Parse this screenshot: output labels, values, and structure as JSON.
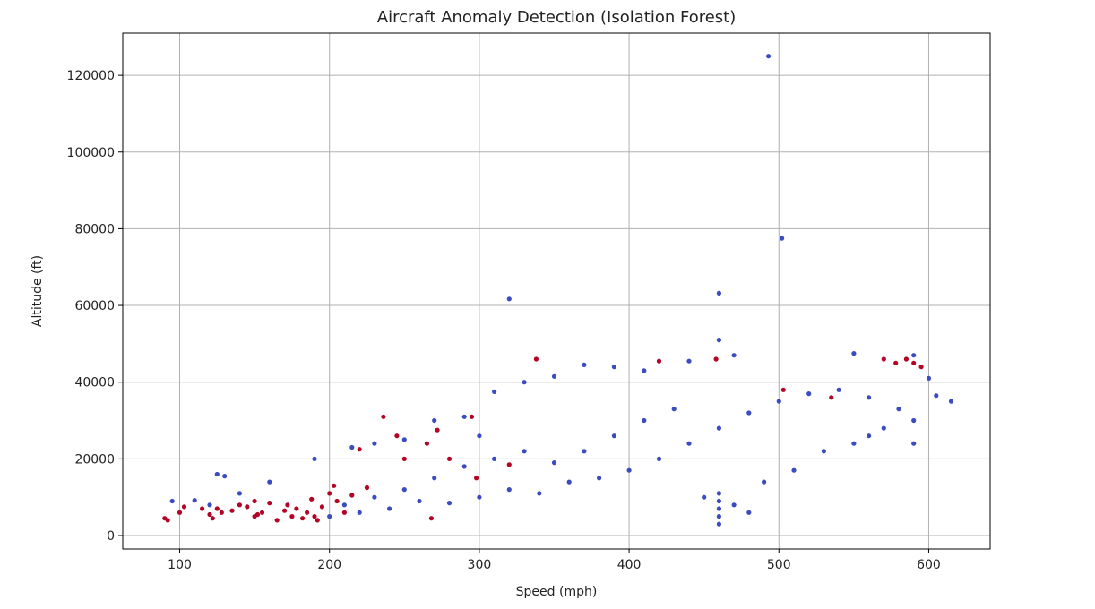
{
  "chart_data": {
    "type": "scatter",
    "title": "Aircraft Anomaly Detection (Isolation Forest)",
    "xlabel": "Speed (mph)",
    "ylabel": "Altitude (ft)",
    "xlim": [
      62,
      641
    ],
    "ylim": [
      -3500,
      131000
    ],
    "x_ticks": [
      100,
      200,
      300,
      400,
      500,
      600
    ],
    "y_ticks": [
      0,
      20000,
      40000,
      60000,
      80000,
      100000,
      120000
    ],
    "grid": true,
    "colors": {
      "normal": "#3b4cc0",
      "anomaly": "#b40426"
    },
    "series": [
      {
        "label_class": "normal",
        "points": [
          [
            493,
            125000
          ],
          [
            502,
            77500
          ],
          [
            320,
            61700
          ],
          [
            460,
            63200
          ],
          [
            460,
            51000
          ],
          [
            470,
            47000
          ],
          [
            550,
            47500
          ],
          [
            590,
            47000
          ],
          [
            615,
            35000
          ],
          [
            600,
            41000
          ],
          [
            605,
            36500
          ],
          [
            590,
            24000
          ],
          [
            560,
            26000
          ],
          [
            370,
            44500
          ],
          [
            390,
            44000
          ],
          [
            410,
            43000
          ],
          [
            440,
            45500
          ],
          [
            310,
            37500
          ],
          [
            330,
            40000
          ],
          [
            350,
            41500
          ],
          [
            190,
            20000
          ],
          [
            160,
            14000
          ],
          [
            140,
            11000
          ],
          [
            125,
            16000
          ],
          [
            130,
            15500
          ],
          [
            95,
            9000
          ],
          [
            110,
            9200
          ],
          [
            120,
            8000
          ],
          [
            215,
            23000
          ],
          [
            230,
            24000
          ],
          [
            250,
            25000
          ],
          [
            270,
            30000
          ],
          [
            290,
            31000
          ],
          [
            300,
            26000
          ],
          [
            260,
            9000
          ],
          [
            280,
            8500
          ],
          [
            300,
            10000
          ],
          [
            320,
            12000
          ],
          [
            340,
            11000
          ],
          [
            360,
            14000
          ],
          [
            380,
            15000
          ],
          [
            400,
            17000
          ],
          [
            420,
            20000
          ],
          [
            440,
            24000
          ],
          [
            460,
            28000
          ],
          [
            480,
            32000
          ],
          [
            500,
            35000
          ],
          [
            520,
            37000
          ],
          [
            540,
            38000
          ],
          [
            560,
            36000
          ],
          [
            580,
            33000
          ],
          [
            450,
            10000
          ],
          [
            470,
            8000
          ],
          [
            480,
            6000
          ],
          [
            490,
            14000
          ],
          [
            510,
            17000
          ],
          [
            530,
            22000
          ],
          [
            550,
            24000
          ],
          [
            570,
            28000
          ],
          [
            590,
            30000
          ],
          [
            460,
            3000
          ],
          [
            460,
            5000
          ],
          [
            460,
            7000
          ],
          [
            460,
            9000
          ],
          [
            460,
            11000
          ],
          [
            350,
            19000
          ],
          [
            370,
            22000
          ],
          [
            390,
            26000
          ],
          [
            410,
            30000
          ],
          [
            430,
            33000
          ],
          [
            330,
            22000
          ],
          [
            310,
            20000
          ],
          [
            290,
            18000
          ],
          [
            270,
            15000
          ],
          [
            250,
            12000
          ],
          [
            230,
            10000
          ],
          [
            210,
            8000
          ],
          [
            200,
            5000
          ],
          [
            220,
            6000
          ],
          [
            240,
            7000
          ]
        ]
      },
      {
        "label_class": "anomaly",
        "points": [
          [
            90,
            4500
          ],
          [
            92,
            4000
          ],
          [
            100,
            6000
          ],
          [
            103,
            7500
          ],
          [
            115,
            7000
          ],
          [
            120,
            5500
          ],
          [
            122,
            4500
          ],
          [
            125,
            7000
          ],
          [
            135,
            6500
          ],
          [
            140,
            8000
          ],
          [
            145,
            7500
          ],
          [
            150,
            9000
          ],
          [
            152,
            5500
          ],
          [
            155,
            6000
          ],
          [
            160,
            8500
          ],
          [
            165,
            4000
          ],
          [
            170,
            6500
          ],
          [
            175,
            5000
          ],
          [
            178,
            7000
          ],
          [
            182,
            4500
          ],
          [
            185,
            6000
          ],
          [
            188,
            9500
          ],
          [
            190,
            5000
          ],
          [
            192,
            4000
          ],
          [
            195,
            7500
          ],
          [
            200,
            11000
          ],
          [
            203,
            13000
          ],
          [
            205,
            9000
          ],
          [
            210,
            6000
          ],
          [
            215,
            10500
          ],
          [
            220,
            22500
          ],
          [
            225,
            12500
          ],
          [
            236,
            31000
          ],
          [
            245,
            26000
          ],
          [
            250,
            20000
          ],
          [
            265,
            24000
          ],
          [
            272,
            27500
          ],
          [
            280,
            20000
          ],
          [
            295,
            31000
          ],
          [
            320,
            18500
          ],
          [
            338,
            46000
          ],
          [
            420,
            45500
          ],
          [
            458,
            46000
          ],
          [
            503,
            38000
          ],
          [
            535,
            36000
          ],
          [
            570,
            46000
          ],
          [
            578,
            45000
          ],
          [
            585,
            46000
          ],
          [
            590,
            45000
          ],
          [
            595,
            44000
          ],
          [
            298,
            15000
          ],
          [
            268,
            4500
          ],
          [
            150,
            5000
          ],
          [
            172,
            8000
          ],
          [
            128,
            6000
          ]
        ]
      }
    ]
  }
}
